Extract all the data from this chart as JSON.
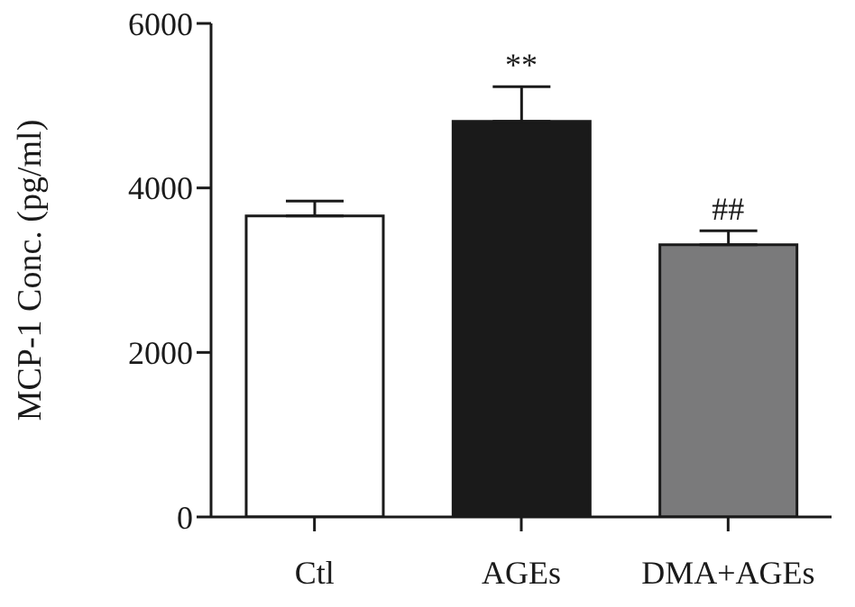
{
  "chart_data": {
    "type": "bar",
    "ylabel": "MCP-1 Conc. (pg/ml)",
    "categories": [
      "Ctl",
      "AGEs",
      "DMA+AGEs"
    ],
    "values": [
      3660,
      4810,
      3310
    ],
    "colors": [
      "#ffffff",
      "#1a1a1a",
      "#7a7a7b"
    ],
    "errors": [
      [
        3660,
        3840
      ],
      [
        4810,
        5230
      ],
      [
        3310,
        3480
      ]
    ],
    "ylim": [
      0,
      6000
    ],
    "yticks": [
      0,
      2000,
      4000,
      6000
    ],
    "annotations": [
      {
        "text": "**",
        "x": "AGEs",
        "y": 5230
      },
      {
        "text": "##",
        "x": "DMA+AGEs",
        "y": 3480
      }
    ]
  }
}
